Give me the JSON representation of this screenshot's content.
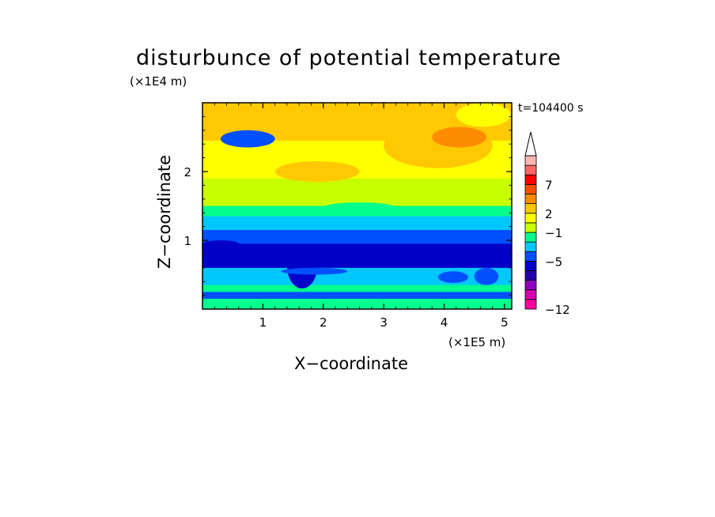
{
  "chart_data": {
    "type": "heatmap",
    "title": "disturbunce of potential temperature",
    "annotation": "t=104400 s",
    "xlabel": "X−coordinate",
    "ylabel": "Z−coordinate",
    "x_unit": "(×1E5 m)",
    "y_unit": "(×1E4 m)",
    "xlim": [
      0,
      5.12
    ],
    "ylim": [
      0,
      3.0
    ],
    "x_ticks": [
      1,
      2,
      3,
      4,
      5
    ],
    "x_tick_labels": [
      "1",
      "2",
      "3",
      "4",
      "5"
    ],
    "y_ticks": [
      1,
      2
    ],
    "y_tick_labels": [
      "1",
      "2"
    ],
    "colorbar": {
      "labels": [
        "7",
        "2",
        "−1",
        "−5",
        "−12"
      ],
      "colors": [
        "#ff00a0",
        "#d600b0",
        "#8c00c0",
        "#2800a8",
        "#0000c8",
        "#0050ff",
        "#00c8ff",
        "#00ff8c",
        "#c8ff00",
        "#ffff00",
        "#ffc800",
        "#ff8c00",
        "#ff5000",
        "#ff0000",
        "#ff6464",
        "#ffb4b4"
      ],
      "extend": "max"
    },
    "bands": [
      {
        "z": [
          2.45,
          3.0
        ],
        "value": 2,
        "color": "#ffc800"
      },
      {
        "z": [
          1.9,
          2.45
        ],
        "value": 1,
        "color": "#ffff00"
      },
      {
        "z": [
          1.5,
          1.9
        ],
        "value": 0,
        "color": "#c8ff00"
      },
      {
        "z": [
          1.35,
          1.5
        ],
        "value": -0.5,
        "color": "#00ff8c"
      },
      {
        "z": [
          1.15,
          1.35
        ],
        "value": -1,
        "color": "#00c8ff"
      },
      {
        "z": [
          0.95,
          1.15
        ],
        "value": -3,
        "color": "#0050ff"
      },
      {
        "z": [
          0.6,
          0.95
        ],
        "value": -5,
        "color": "#0000c8"
      },
      {
        "z": [
          0.35,
          0.6
        ],
        "value": -1,
        "color": "#00c8ff"
      },
      {
        "z": [
          0.25,
          0.35
        ],
        "value": -0.5,
        "color": "#00ff8c"
      },
      {
        "z": [
          0.15,
          0.25
        ],
        "value": -3,
        "color": "#0050ff"
      },
      {
        "z": [
          0.0,
          0.15
        ],
        "value": -0.5,
        "color": "#00ff8c"
      }
    ],
    "features": [
      {
        "x": [
          0.3,
          1.2
        ],
        "z": [
          2.35,
          2.6
        ],
        "value": -3,
        "color": "#0050ff"
      },
      {
        "x": [
          1.2,
          2.6
        ],
        "z": [
          1.85,
          2.15
        ],
        "value": 2,
        "color": "#ffc800"
      },
      {
        "x": [
          3.0,
          4.8
        ],
        "z": [
          2.05,
          2.7
        ],
        "value": 2,
        "color": "#ffc800"
      },
      {
        "x": [
          3.8,
          4.7
        ],
        "z": [
          2.35,
          2.65
        ],
        "value": 3,
        "color": "#ff8c00"
      },
      {
        "x": [
          2.3,
          3.6
        ],
        "z": [
          2.65,
          3.0
        ],
        "value": 2,
        "color": "#ffc800"
      },
      {
        "x": [
          4.2,
          5.1
        ],
        "z": [
          2.65,
          3.0
        ],
        "value": 1,
        "color": "#ffff00"
      },
      {
        "x": [
          0.5,
          1.2
        ],
        "z": [
          1.6,
          1.8
        ],
        "value": 0,
        "color": "#c8ff00"
      },
      {
        "x": [
          2.0,
          3.2
        ],
        "z": [
          1.4,
          1.55
        ],
        "value": -0.5,
        "color": "#00ff8c"
      },
      {
        "x": [
          1.4,
          1.9
        ],
        "z": [
          0.3,
          0.95
        ],
        "value": -5,
        "color": "#0000c8"
      },
      {
        "x": [
          0.0,
          0.6
        ],
        "z": [
          0.9,
          1.0
        ],
        "value": -5,
        "color": "#0000c8"
      },
      {
        "x": [
          1.3,
          2.4
        ],
        "z": [
          0.5,
          0.6
        ],
        "value": -3,
        "color": "#0050ff"
      },
      {
        "x": [
          3.9,
          4.4
        ],
        "z": [
          0.38,
          0.55
        ],
        "value": -3,
        "color": "#0050ff"
      },
      {
        "x": [
          4.5,
          4.9
        ],
        "z": [
          0.35,
          0.6
        ],
        "value": -3,
        "color": "#0050ff"
      }
    ]
  }
}
